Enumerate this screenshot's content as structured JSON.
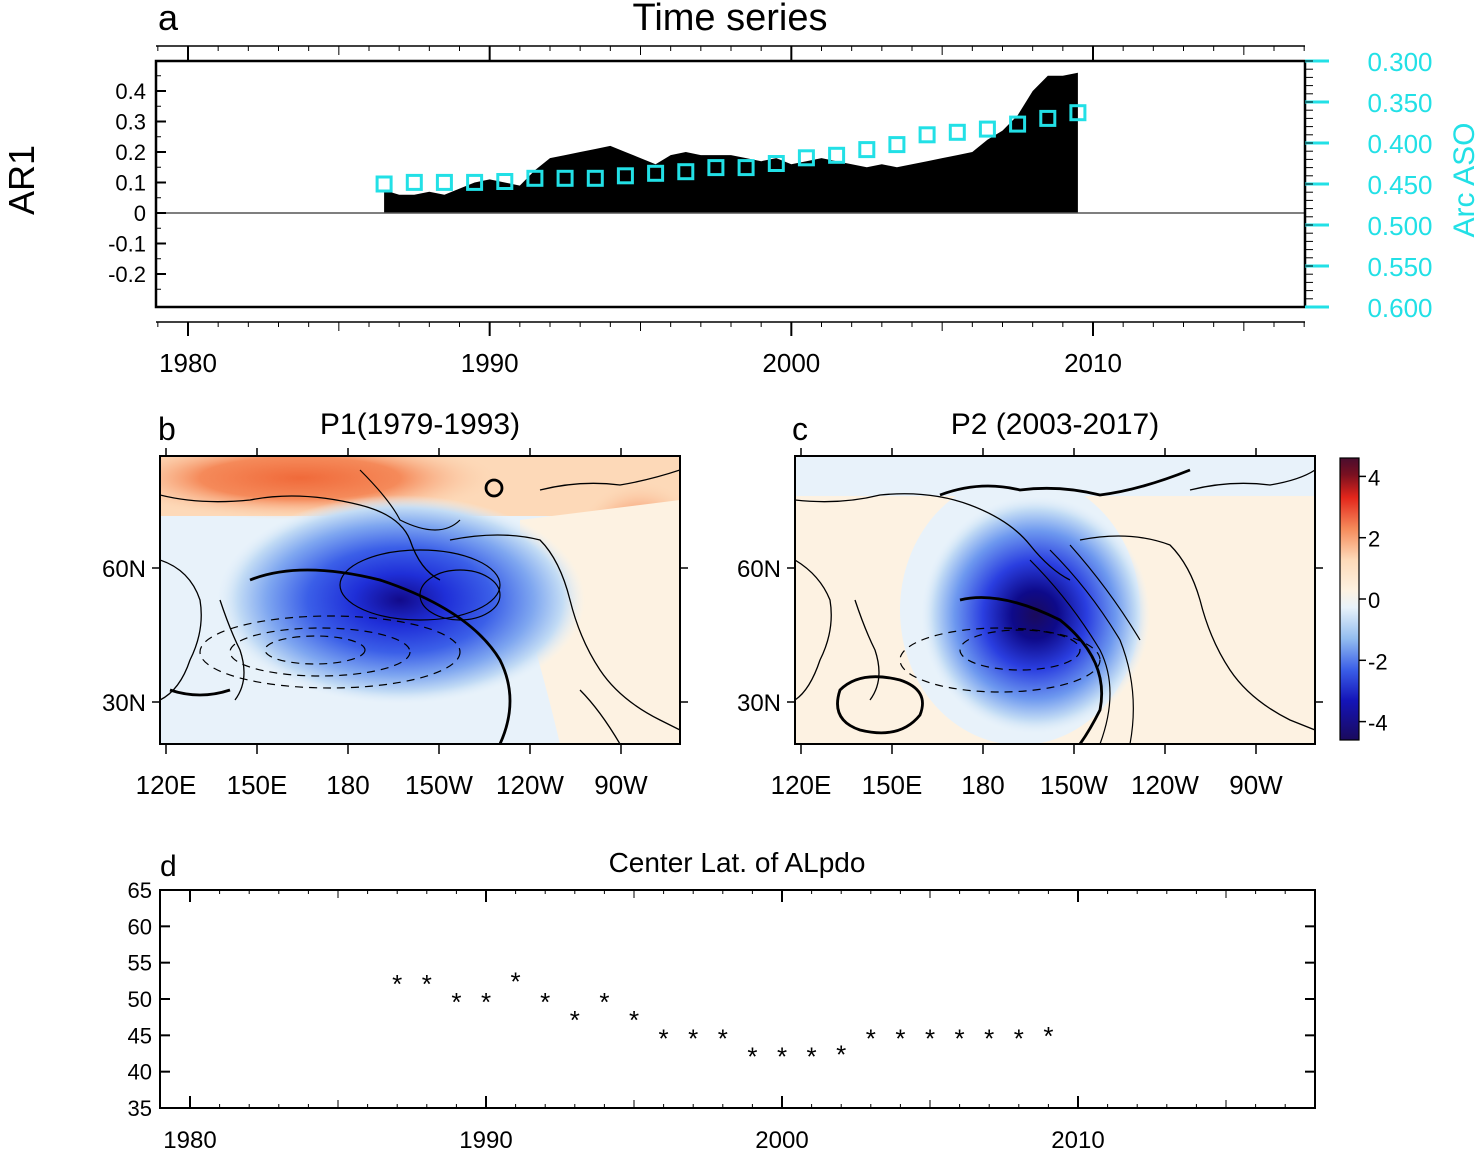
{
  "chart_data": [
    {
      "type": "area",
      "panel_label": "a",
      "title": "Time series",
      "ylabel": "AR1",
      "y2label": "Arc ASO",
      "xlim": [
        1979,
        2017
      ],
      "ylim": [
        -0.3,
        0.5
      ],
      "y2lim": [
        0.6,
        0.3
      ],
      "y2_inverted": true,
      "xticks": [
        1980,
        1990,
        2000,
        2010
      ],
      "yticks": [
        0.4,
        0.3,
        0.2,
        0.1,
        0,
        -0.1,
        -0.2
      ],
      "ytick_labels": [
        "0.4",
        "0.3",
        "0.2",
        "0.1",
        "0",
        "-0.1",
        "-0.2"
      ],
      "y2ticks": [
        0.3,
        0.35,
        0.4,
        0.45,
        0.5,
        0.55,
        0.6
      ],
      "y2tick_labels": [
        "0.300",
        "0.350",
        "0.400",
        "0.450",
        "0.500",
        "0.550",
        "0.600"
      ],
      "series": [
        {
          "name": "AR1",
          "style": "filled-area",
          "color": "#000000",
          "x": [
            1986.5,
            1987,
            1987.5,
            1988,
            1988.5,
            1989,
            1989.5,
            1990,
            1990.5,
            1991,
            1991.5,
            1992,
            1992.5,
            1993,
            1993.5,
            1994,
            1994.5,
            1995,
            1995.5,
            1996,
            1996.5,
            1997,
            1997.5,
            1998,
            1998.5,
            1999,
            1999.5,
            2000,
            2000.5,
            2001,
            2001.5,
            2002,
            2002.5,
            2003,
            2003.5,
            2004,
            2004.5,
            2005,
            2005.5,
            2006,
            2006.5,
            2007,
            2007.5,
            2008,
            2008.5,
            2009,
            2009.5
          ],
          "values": [
            0.075,
            0.06,
            0.06,
            0.07,
            0.06,
            0.08,
            0.1,
            0.11,
            0.1,
            0.09,
            0.14,
            0.18,
            0.19,
            0.2,
            0.21,
            0.22,
            0.2,
            0.18,
            0.16,
            0.19,
            0.2,
            0.19,
            0.19,
            0.19,
            0.18,
            0.17,
            0.18,
            0.16,
            0.17,
            0.18,
            0.17,
            0.16,
            0.15,
            0.16,
            0.15,
            0.16,
            0.17,
            0.18,
            0.19,
            0.2,
            0.24,
            0.27,
            0.32,
            0.4,
            0.45,
            0.45,
            0.46
          ]
        },
        {
          "name": "Arc ASO",
          "style": "square-markers",
          "axis": "right",
          "color": "#22e0e6",
          "x": [
            1986.5,
            1987.5,
            1988.5,
            1989.5,
            1990.5,
            1991.5,
            1992.5,
            1993.5,
            1994.5,
            1995.5,
            1996.5,
            1997.5,
            1998.5,
            1999.5,
            2000.5,
            2001.5,
            2002.5,
            2003.5,
            2004.5,
            2005.5,
            2006.5,
            2007.5,
            2008.5,
            2009.5
          ],
          "values": [
            0.45,
            0.448,
            0.448,
            0.448,
            0.447,
            0.443,
            0.443,
            0.443,
            0.44,
            0.437,
            0.435,
            0.43,
            0.43,
            0.425,
            0.418,
            0.415,
            0.408,
            0.402,
            0.39,
            0.387,
            0.383,
            0.377,
            0.37,
            0.363
          ]
        }
      ]
    },
    {
      "type": "heatmap",
      "panel_label": "b",
      "title": "P1(1979-1993)",
      "xtick_labels": [
        "120E",
        "150E",
        "180",
        "150W",
        "120W",
        "90W"
      ],
      "ytick_labels": [
        "60N",
        "30N"
      ],
      "anomaly_centers": [
        {
          "name": "low",
          "lon": 195,
          "lat": 52,
          "value": -4.2
        },
        {
          "name": "high-arctic",
          "lon": 150,
          "lat": 78,
          "value": 1.5
        },
        {
          "name": "high-east",
          "lon": 275,
          "lat": 60,
          "value": 1.5
        }
      ]
    },
    {
      "type": "heatmap",
      "panel_label": "c",
      "title": "P2 (2003-2017)",
      "xtick_labels": [
        "120E",
        "150E",
        "180",
        "150W",
        "120W",
        "90W"
      ],
      "ytick_labels": [
        "60N",
        "30N"
      ],
      "colorbar": {
        "ticks": [
          4,
          2,
          0,
          -2,
          -4
        ],
        "tick_labels": [
          "4",
          "2",
          "0",
          "-2",
          "-4"
        ],
        "colors": [
          "#4a0d2e",
          "#7a1020",
          "#b5121b",
          "#e3261b",
          "#f05a2b",
          "#f58a5a",
          "#fab08a",
          "#fdd9b8",
          "#fdf2e2",
          "#e8f2fa",
          "#c3dcf5",
          "#93bdf0",
          "#5f8ef0",
          "#3b5fe8",
          "#1f2fd8",
          "#1414b8",
          "#0e0a8a",
          "#1a0a5c"
        ]
      },
      "anomaly_centers": [
        {
          "name": "low",
          "lon": 207,
          "lat": 44,
          "value": -4.2
        }
      ]
    },
    {
      "type": "scatter",
      "panel_label": "d",
      "title": "Center Lat. of ALpdo",
      "xlim": [
        1979,
        2017
      ],
      "ylim": [
        35,
        65
      ],
      "xticks": [
        1980,
        1990,
        2000,
        2010
      ],
      "yticks": [
        35,
        40,
        45,
        50,
        55,
        60,
        65
      ],
      "marker": "*",
      "x": [
        1987,
        1988,
        1989,
        1990,
        1991,
        1992,
        1993,
        1994,
        1995,
        1996,
        1997,
        1998,
        1999,
        2000,
        2001,
        2002,
        2003,
        2004,
        2005,
        2006,
        2007,
        2008,
        2009
      ],
      "values": [
        52.5,
        52.5,
        50,
        50,
        52.8,
        50,
        47.5,
        50,
        47.5,
        45,
        45,
        45,
        42.5,
        42.5,
        42.5,
        42.8,
        45,
        45,
        45,
        45,
        45,
        45,
        45.3
      ]
    }
  ]
}
